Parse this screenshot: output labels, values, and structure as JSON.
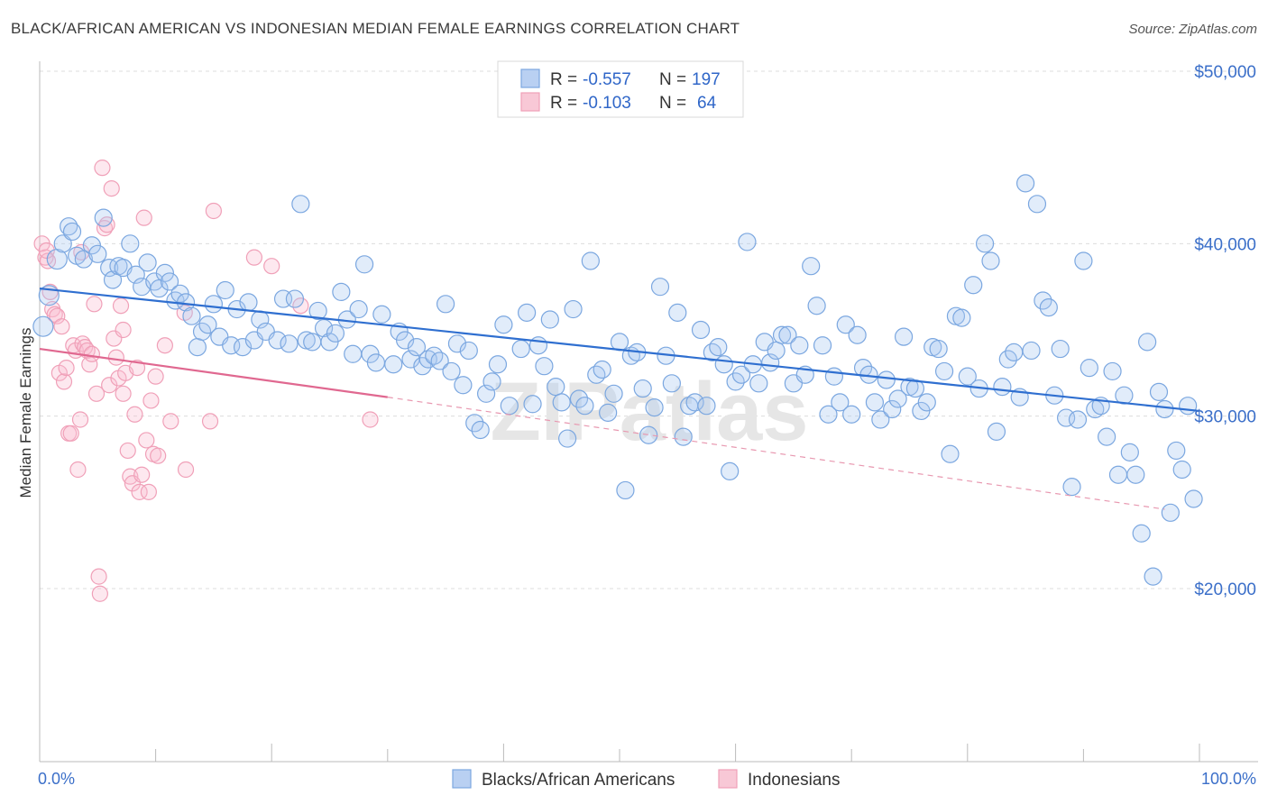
{
  "title": "BLACK/AFRICAN AMERICAN VS INDONESIAN MEDIAN FEMALE EARNINGS CORRELATION CHART",
  "source": "Source: ZipAtlas.com",
  "colors": {
    "blue": "#7ba7e0",
    "blue_line": "#2f6fd0",
    "pink": "#f0a0b8",
    "pink_line": "#e06890",
    "axis_label": "#3b6fc9"
  },
  "legend": {
    "rows": [
      {
        "r_label": "R =",
        "r_value": "-0.557",
        "n_label": "N =",
        "n_value": "197"
      },
      {
        "r_label": "R =",
        "r_value": "-0.103",
        "n_label": "N =",
        "n_value": "64"
      }
    ]
  },
  "bottom_legend": [
    "Blacks/African Americans",
    "Indonesians"
  ],
  "watermark": "ZIPatlas",
  "chart_data": {
    "type": "scatter",
    "title": "BLACK/AFRICAN AMERICAN VS INDONESIAN MEDIAN FEMALE EARNINGS CORRELATION CHART",
    "ylabel": "Median Female Earnings",
    "xlabel": "",
    "x_tick_labels": [
      "0.0%",
      "100.0%"
    ],
    "y_tick_labels": [
      "$20,000",
      "$30,000",
      "$40,000",
      "$50,000"
    ],
    "y_ticks": [
      20000,
      30000,
      40000,
      50000
    ],
    "xlim": [
      0,
      100
    ],
    "ylim": [
      10000,
      51000
    ],
    "grid": true,
    "legend_position": "top-center",
    "series": [
      {
        "name": "Blacks/African Americans",
        "trend": {
          "x": [
            0,
            100
          ],
          "y": [
            37400,
            30300
          ]
        },
        "points": [
          [
            0.3,
            35200
          ],
          [
            0.8,
            37000
          ],
          [
            1.5,
            39100
          ],
          [
            2,
            40000
          ],
          [
            2.5,
            41000
          ],
          [
            2.8,
            40700
          ],
          [
            3.2,
            39300
          ],
          [
            3.8,
            39100
          ],
          [
            4.5,
            39900
          ],
          [
            5,
            39400
          ],
          [
            5.5,
            41500
          ],
          [
            6,
            38600
          ],
          [
            6.3,
            37900
          ],
          [
            6.8,
            38700
          ],
          [
            7.2,
            38600
          ],
          [
            7.8,
            40000
          ],
          [
            8.3,
            38200
          ],
          [
            8.8,
            37500
          ],
          [
            9.3,
            38900
          ],
          [
            9.9,
            37800
          ],
          [
            10.3,
            37400
          ],
          [
            10.8,
            38300
          ],
          [
            11.2,
            37800
          ],
          [
            11.7,
            36700
          ],
          [
            12.1,
            37100
          ],
          [
            12.6,
            36600
          ],
          [
            13.1,
            35800
          ],
          [
            13.6,
            34000
          ],
          [
            14,
            34900
          ],
          [
            14.5,
            35300
          ],
          [
            15,
            36500
          ],
          [
            15.5,
            34600
          ],
          [
            16,
            37300
          ],
          [
            16.5,
            34100
          ],
          [
            17,
            36200
          ],
          [
            17.5,
            34000
          ],
          [
            18,
            36600
          ],
          [
            18.5,
            34400
          ],
          [
            19,
            35600
          ],
          [
            19.5,
            34900
          ],
          [
            20.5,
            34400
          ],
          [
            21,
            36800
          ],
          [
            21.5,
            34200
          ],
          [
            22,
            36800
          ],
          [
            22.5,
            42300
          ],
          [
            23,
            34400
          ],
          [
            23.5,
            34300
          ],
          [
            24,
            36100
          ],
          [
            24.5,
            35100
          ],
          [
            25,
            34300
          ],
          [
            25.5,
            34800
          ],
          [
            26,
            37200
          ],
          [
            26.5,
            35600
          ],
          [
            27,
            33600
          ],
          [
            27.5,
            36200
          ],
          [
            28,
            38800
          ],
          [
            28.5,
            33600
          ],
          [
            29,
            33100
          ],
          [
            29.5,
            35900
          ],
          [
            30.5,
            33000
          ],
          [
            31,
            34900
          ],
          [
            31.5,
            34400
          ],
          [
            32,
            33300
          ],
          [
            32.5,
            34000
          ],
          [
            33,
            32900
          ],
          [
            33.5,
            33300
          ],
          [
            34,
            33500
          ],
          [
            34.5,
            33200
          ],
          [
            35,
            36500
          ],
          [
            35.5,
            32600
          ],
          [
            36,
            34200
          ],
          [
            36.5,
            31800
          ],
          [
            37,
            33800
          ],
          [
            37.5,
            29600
          ],
          [
            38,
            29200
          ],
          [
            38.5,
            31300
          ],
          [
            39,
            32000
          ],
          [
            39.5,
            33000
          ],
          [
            40,
            35300
          ],
          [
            40.5,
            30600
          ],
          [
            41.5,
            33900
          ],
          [
            42,
            36000
          ],
          [
            42.5,
            30700
          ],
          [
            43,
            34100
          ],
          [
            43.5,
            32900
          ],
          [
            44,
            35600
          ],
          [
            44.5,
            31700
          ],
          [
            45,
            30800
          ],
          [
            45.5,
            28700
          ],
          [
            46,
            36200
          ],
          [
            46.5,
            31000
          ],
          [
            47,
            30600
          ],
          [
            47.5,
            39000
          ],
          [
            48,
            32400
          ],
          [
            48.5,
            32700
          ],
          [
            49,
            30200
          ],
          [
            49.5,
            31300
          ],
          [
            50,
            34300
          ],
          [
            50.5,
            25700
          ],
          [
            51,
            33500
          ],
          [
            51.5,
            33700
          ],
          [
            52,
            31600
          ],
          [
            52.5,
            28900
          ],
          [
            53,
            30500
          ],
          [
            53.5,
            37500
          ],
          [
            54,
            33500
          ],
          [
            54.5,
            31900
          ],
          [
            55,
            36000
          ],
          [
            55.5,
            28800
          ],
          [
            56,
            30600
          ],
          [
            56.5,
            30800
          ],
          [
            57,
            35000
          ],
          [
            57.5,
            30600
          ],
          [
            58,
            33700
          ],
          [
            58.5,
            34000
          ],
          [
            59,
            33000
          ],
          [
            59.5,
            26800
          ],
          [
            60,
            32000
          ],
          [
            60.5,
            32400
          ],
          [
            61,
            40100
          ],
          [
            61.5,
            33000
          ],
          [
            62,
            31900
          ],
          [
            62.5,
            34300
          ],
          [
            63,
            33100
          ],
          [
            63.5,
            33800
          ],
          [
            64,
            34700
          ],
          [
            64.5,
            34700
          ],
          [
            65,
            31900
          ],
          [
            65.5,
            34100
          ],
          [
            66,
            32400
          ],
          [
            66.5,
            38700
          ],
          [
            67,
            36400
          ],
          [
            67.5,
            34100
          ],
          [
            68,
            30100
          ],
          [
            68.5,
            32300
          ],
          [
            69,
            30800
          ],
          [
            69.5,
            35300
          ],
          [
            70,
            30100
          ],
          [
            70.5,
            34700
          ],
          [
            71,
            32800
          ],
          [
            71.5,
            32400
          ],
          [
            72,
            30800
          ],
          [
            72.5,
            29800
          ],
          [
            73,
            32100
          ],
          [
            73.5,
            30400
          ],
          [
            74,
            31000
          ],
          [
            74.5,
            34600
          ],
          [
            75,
            31700
          ],
          [
            75.5,
            31600
          ],
          [
            76,
            30300
          ],
          [
            76.5,
            30800
          ],
          [
            77,
            34000
          ],
          [
            77.5,
            33900
          ],
          [
            78,
            32600
          ],
          [
            78.5,
            27800
          ],
          [
            79,
            35800
          ],
          [
            79.5,
            35700
          ],
          [
            80,
            32300
          ],
          [
            80.5,
            37600
          ],
          [
            81,
            31600
          ],
          [
            81.5,
            40000
          ],
          [
            82,
            39000
          ],
          [
            82.5,
            29100
          ],
          [
            83,
            31700
          ],
          [
            83.5,
            33300
          ],
          [
            84,
            33700
          ],
          [
            84.5,
            31100
          ],
          [
            85,
            43500
          ],
          [
            85.5,
            33800
          ],
          [
            86,
            42300
          ],
          [
            86.5,
            36700
          ],
          [
            87,
            36300
          ],
          [
            87.5,
            31200
          ],
          [
            88,
            33900
          ],
          [
            88.5,
            29900
          ],
          [
            89,
            25900
          ],
          [
            89.5,
            29800
          ],
          [
            90,
            39000
          ],
          [
            90.5,
            32800
          ],
          [
            91,
            30400
          ],
          [
            91.5,
            30600
          ],
          [
            92,
            28800
          ],
          [
            92.5,
            32600
          ],
          [
            93,
            26600
          ],
          [
            93.5,
            31200
          ],
          [
            94,
            27900
          ],
          [
            94.5,
            26600
          ],
          [
            95,
            23200
          ],
          [
            95.5,
            34300
          ],
          [
            96,
            20700
          ],
          [
            96.5,
            31400
          ],
          [
            97,
            30400
          ],
          [
            97.5,
            24400
          ],
          [
            98,
            28000
          ],
          [
            98.5,
            26900
          ],
          [
            99,
            30600
          ],
          [
            99.5,
            25200
          ]
        ]
      },
      {
        "name": "Indonesians",
        "trend": {
          "x": [
            0,
            30
          ],
          "y": [
            33900,
            31100
          ]
        },
        "trend_dashed": {
          "x": [
            30,
            97
          ],
          "y": [
            31100,
            24600
          ]
        },
        "points": [
          [
            0.2,
            40000
          ],
          [
            0.5,
            39200
          ],
          [
            0.7,
            39000
          ],
          [
            0.9,
            37200
          ],
          [
            1.1,
            36200
          ],
          [
            1.3,
            35900
          ],
          [
            1.5,
            35800
          ],
          [
            1.7,
            32500
          ],
          [
            1.9,
            35200
          ],
          [
            2.1,
            32000
          ],
          [
            2.3,
            32800
          ],
          [
            2.5,
            29000
          ],
          [
            2.7,
            29000
          ],
          [
            2.9,
            34100
          ],
          [
            3.1,
            33800
          ],
          [
            3.3,
            26900
          ],
          [
            3.5,
            29800
          ],
          [
            3.7,
            34200
          ],
          [
            3.9,
            34000
          ],
          [
            4.1,
            33800
          ],
          [
            4.3,
            33000
          ],
          [
            4.5,
            33600
          ],
          [
            4.7,
            36500
          ],
          [
            4.9,
            31300
          ],
          [
            5.1,
            20700
          ],
          [
            5.2,
            19700
          ],
          [
            5.4,
            44400
          ],
          [
            5.6,
            40900
          ],
          [
            5.8,
            41100
          ],
          [
            6,
            31800
          ],
          [
            6.2,
            43200
          ],
          [
            6.4,
            34500
          ],
          [
            6.6,
            33400
          ],
          [
            6.8,
            32200
          ],
          [
            7,
            36400
          ],
          [
            7.2,
            31300
          ],
          [
            7.4,
            32500
          ],
          [
            7.6,
            28000
          ],
          [
            7.8,
            26500
          ],
          [
            8,
            26100
          ],
          [
            8.2,
            30100
          ],
          [
            8.4,
            32800
          ],
          [
            8.6,
            25600
          ],
          [
            8.8,
            26600
          ],
          [
            9,
            41500
          ],
          [
            9.2,
            28600
          ],
          [
            9.4,
            25600
          ],
          [
            9.6,
            30900
          ],
          [
            9.8,
            27800
          ],
          [
            10,
            32300
          ],
          [
            10.2,
            27700
          ],
          [
            10.8,
            34100
          ],
          [
            11.3,
            29700
          ],
          [
            12.6,
            26900
          ],
          [
            14.7,
            29700
          ],
          [
            15,
            41900
          ],
          [
            18.5,
            39200
          ],
          [
            20,
            38700
          ],
          [
            22.5,
            36400
          ],
          [
            28.5,
            29800
          ],
          [
            12.5,
            36000
          ],
          [
            7.2,
            35000
          ],
          [
            3.6,
            39500
          ],
          [
            0.6,
            39600
          ]
        ]
      }
    ]
  }
}
